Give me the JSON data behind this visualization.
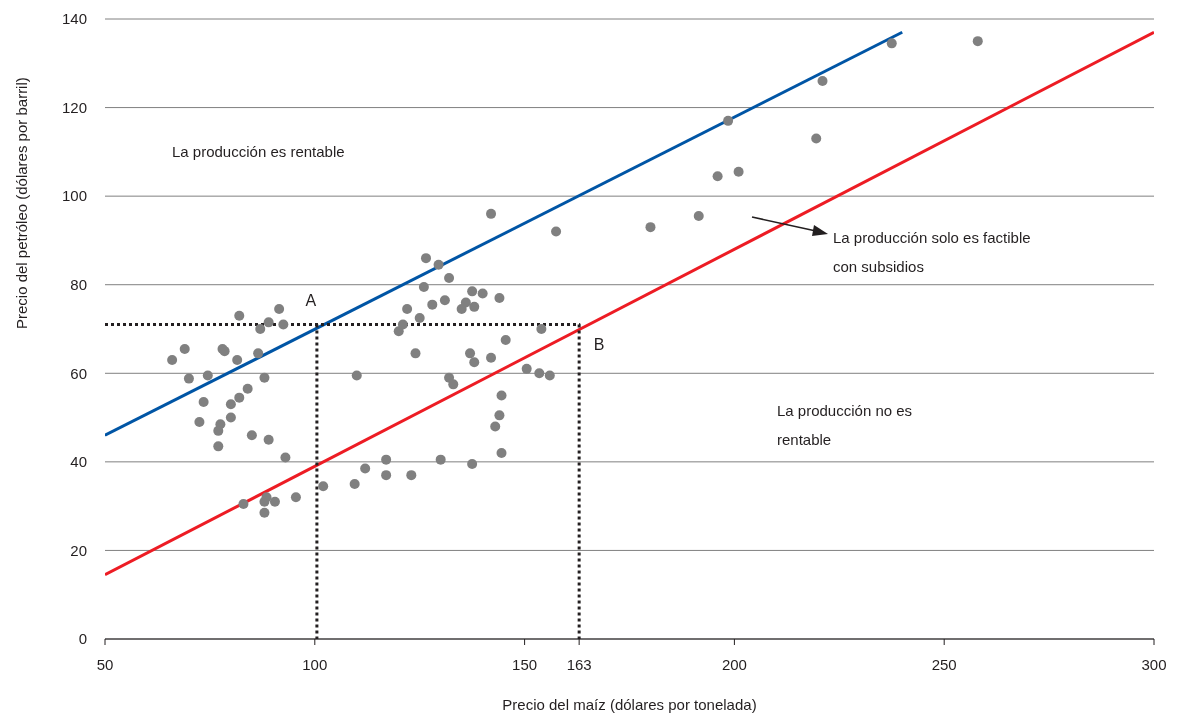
{
  "chart_data": {
    "type": "scatter",
    "xlabel": "Precio del maíz (dólares por tonelada)",
    "ylabel": "Precio del petróleo (dólares por barril)",
    "xlim": [
      50,
      300
    ],
    "xticks": [
      50,
      100,
      150,
      {
        "value": 163,
        "label": "163"
      },
      200,
      250,
      300
    ],
    "ylim": [
      0,
      140
    ],
    "yticks": [
      0,
      20,
      40,
      60,
      80,
      100,
      120,
      140
    ],
    "grid": "y",
    "series": [
      {
        "marker": "circle",
        "color": "#808080",
        "x": [
          66,
          69,
          70,
          74.5,
          78,
          78.5,
          81.5,
          86.5,
          82,
          87,
          89,
          91.5,
          92.5,
          73.5,
          80,
          82,
          84,
          88,
          72.5,
          80,
          77,
          77.5,
          77,
          85,
          89,
          93,
          83,
          88,
          88.5,
          88,
          90.5,
          95.5,
          102,
          110,
          109.5,
          112,
          117,
          117,
          123,
          120,
          121,
          122,
          124,
          125,
          126,
          126.5,
          128,
          129.5,
          130,
          131,
          132,
          132,
          133,
          135,
          136,
          137,
          137.5,
          138,
          138,
          137.5,
          140,
          142,
          142,
          143,
          144,
          144,
          144.5,
          144.5,
          145.5,
          150.5,
          153.5,
          154,
          156,
          157.5,
          180,
          191.5,
          196,
          198.5,
          201,
          219.5,
          221,
          237.5,
          258
        ],
        "values": [
          63,
          65.5,
          58.8,
          59.5,
          65.5,
          65,
          63,
          64.5,
          73,
          70,
          71.5,
          74.5,
          71,
          53.5,
          53,
          54.5,
          56.5,
          59,
          49,
          50,
          47,
          48.5,
          43.5,
          46,
          45,
          41,
          30.5,
          31,
          32,
          28.5,
          31,
          32,
          34.5,
          59.5,
          35,
          38.5,
          40.5,
          37,
          37,
          69.5,
          71,
          74.5,
          64.5,
          72.5,
          79.5,
          86,
          75.5,
          84.5,
          40.5,
          76.5,
          59,
          81.5,
          57.5,
          74.5,
          76,
          64.5,
          78.5,
          62.5,
          75,
          39.5,
          78,
          96,
          63.5,
          48,
          77,
          50.5,
          55,
          42,
          67.5,
          61,
          60,
          70,
          59.5,
          92,
          93,
          95.5,
          104.5,
          117,
          105.5,
          113,
          126,
          134.5,
          135
        ]
      },
      {
        "type": "line",
        "color": "#0055a5",
        "x": [
          50,
          240
        ],
        "values": [
          46,
          137
        ]
      },
      {
        "type": "line",
        "color": "#ed1c24",
        "x": [
          50,
          300
        ],
        "values": [
          14.5,
          137
        ]
      },
      {
        "type": "line",
        "color": "#231f20",
        "line_style": "dotted",
        "x": [
          50,
          163,
          163
        ],
        "values": [
          71,
          71,
          0
        ]
      },
      {
        "type": "line",
        "color": "#231f20",
        "line_style": "dotted",
        "x": [
          100.5,
          100.5
        ],
        "values": [
          71,
          0
        ]
      }
    ],
    "annotations": [
      "La producción es rentable",
      "La producción solo es factible con subsidios",
      "La producción no es rentable",
      {
        "text": "A",
        "x": 100,
        "y": 71
      },
      {
        "text": "B",
        "x": 163,
        "y": 71
      }
    ]
  }
}
